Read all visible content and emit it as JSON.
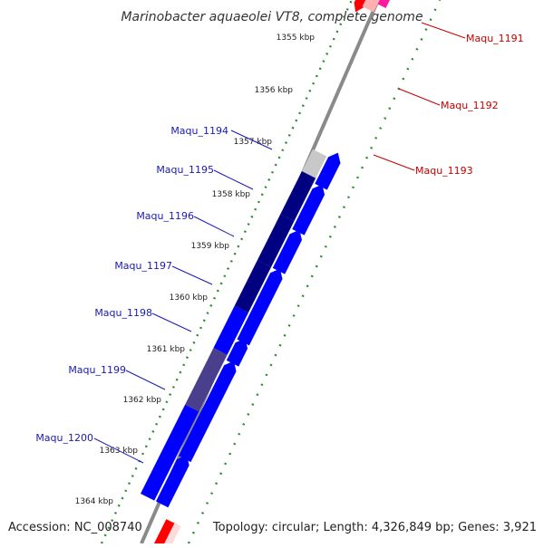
{
  "title": "Marinobacter aquaeolei VT8, complete genome",
  "accession": "Accession: NC_008740",
  "summary": "Topology: circular; Length: 4,326,849 bp; Genes: 3,921",
  "colors": {
    "background": "#ffffff",
    "backbone": "#8a8a8a",
    "tick": "#2e8b2e",
    "forward_strong": "#0000ff",
    "forward_dark": "#000080",
    "forward_muted": "#4a3f8c",
    "forward_gray": "#c8c8c8",
    "reverse_red": "#ff0000",
    "reverse_pink": "#ff1aa0",
    "reverse_lavender": "#7a6ad8",
    "label_blue": "#1a1ab5",
    "label_red": "#c40000"
  },
  "scale_labels": [
    "1355 kbp",
    "1356 kbp",
    "1357 kbp",
    "1358 kbp",
    "1359 kbp",
    "1360 kbp",
    "1361 kbp",
    "1362 kbp",
    "1363 kbp",
    "1364 kbp"
  ],
  "forward_genes": [
    "Maqu_1194",
    "Maqu_1195",
    "Maqu_1196",
    "Maqu_1197",
    "Maqu_1198",
    "Maqu_1199",
    "Maqu_1200"
  ],
  "reverse_genes": [
    "Maqu_1191",
    "Maqu_1192",
    "Maqu_1193"
  ]
}
